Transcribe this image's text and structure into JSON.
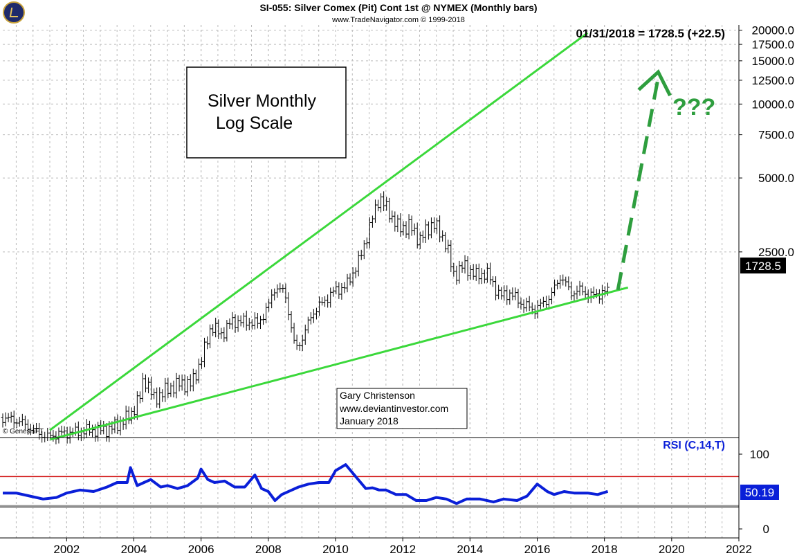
{
  "header": {
    "title": "SI-055:  Silver Comex (Pit) Cont 1st @ NYMEX  (Monthly bars)",
    "subtitle": "www.TradeNavigator.com © 1999-2018",
    "last_price_label": "01/31/2018 = 1728.5 (+22.5)",
    "copyright": "© GenesisFT"
  },
  "annotations": {
    "box_line1": "Silver Monthly",
    "box_line2": "Log Scale",
    "question": "???",
    "author_line1": "Gary Christenson",
    "author_line2": "www.deviantinvestor.com",
    "author_line3": "January 2018",
    "rsi_label": "RSI (C,14,T)"
  },
  "colors": {
    "trendline": "#3bd83b",
    "arrow": "#2e9e3e",
    "rsi_line": "#0a1fd8",
    "rsi_label": "#0a1fd8",
    "overbought": "#d01010",
    "oversold": "#909090",
    "price_bar": "#000000"
  },
  "chart_data": [
    {
      "type": "ohlc",
      "title": "SI-055:  Silver Comex (Pit) Cont 1st @ NYMEX  (Monthly bars)",
      "y_scale": "log",
      "ylim": [
        450,
        21000
      ],
      "y_ticks": [
        "20000.0",
        "17500.0",
        "15000.0",
        "12500.0",
        "10000.0",
        "7500.0",
        "5000.0",
        "2500.0"
      ],
      "y_tick_values": [
        20000,
        17500,
        15000,
        12500,
        10000,
        7500,
        5000,
        2500
      ],
      "xlim": [
        2000.1,
        2022.0
      ],
      "x_ticks": [
        "2002",
        "2004",
        "2006",
        "2008",
        "2010",
        "2012",
        "2014",
        "2016",
        "2018",
        "2020",
        "2022"
      ],
      "last_value_label": "1728.5",
      "close_series": [
        [
          2000.1,
          528
        ],
        [
          2000.6,
          510
        ],
        [
          2001.0,
          472
        ],
        [
          2001.4,
          440
        ],
        [
          2001.8,
          455
        ],
        [
          2002.2,
          460
        ],
        [
          2002.6,
          468
        ],
        [
          2003.0,
          470
        ],
        [
          2003.3,
          475
        ],
        [
          2003.6,
          505
        ],
        [
          2003.9,
          540
        ],
        [
          2004.2,
          650
        ],
        [
          2004.3,
          780
        ],
        [
          2004.6,
          630
        ],
        [
          2005.0,
          690
        ],
        [
          2005.4,
          730
        ],
        [
          2005.7,
          720
        ],
        [
          2006.0,
          900
        ],
        [
          2006.3,
          1250
        ],
        [
          2006.6,
          1150
        ],
        [
          2006.9,
          1300
        ],
        [
          2007.3,
          1300
        ],
        [
          2007.7,
          1280
        ],
        [
          2008.0,
          1500
        ],
        [
          2008.2,
          1800
        ],
        [
          2008.5,
          1700
        ],
        [
          2008.8,
          1000
        ],
        [
          2009.0,
          1100
        ],
        [
          2009.3,
          1400
        ],
        [
          2009.7,
          1600
        ],
        [
          2010.0,
          1750
        ],
        [
          2010.3,
          1800
        ],
        [
          2010.7,
          2300
        ],
        [
          2010.9,
          2800
        ],
        [
          2011.0,
          3100
        ],
        [
          2011.3,
          4200
        ],
        [
          2011.6,
          3600
        ],
        [
          2011.9,
          3100
        ],
        [
          2012.2,
          3200
        ],
        [
          2012.5,
          2800
        ],
        [
          2012.9,
          3300
        ],
        [
          2013.3,
          2700
        ],
        [
          2013.5,
          2000
        ],
        [
          2013.8,
          2200
        ],
        [
          2014.2,
          2000
        ],
        [
          2014.5,
          2050
        ],
        [
          2014.9,
          1650
        ],
        [
          2015.2,
          1700
        ],
        [
          2015.5,
          1550
        ],
        [
          2015.9,
          1450
        ],
        [
          2016.2,
          1550
        ],
        [
          2016.4,
          1650
        ],
        [
          2016.7,
          2000
        ],
        [
          2017.0,
          1700
        ],
        [
          2017.3,
          1750
        ],
        [
          2017.6,
          1650
        ],
        [
          2017.9,
          1700
        ],
        [
          2018.1,
          1728.5
        ]
      ],
      "trendlines": [
        {
          "from": [
            2001.5,
            470
          ],
          "to": [
            2017.5,
            19500
          ]
        },
        {
          "from": [
            2001.5,
            430
          ],
          "to": [
            2018.7,
            1790
          ]
        }
      ],
      "projection_arrow": {
        "from": [
          2018.4,
          1750
        ],
        "to": [
          2019.6,
          13500
        ]
      }
    },
    {
      "type": "line",
      "title": "RSI (C,14,T)",
      "ylim": [
        0,
        100
      ],
      "y_ticks": [
        "100",
        "0"
      ],
      "y_tick_values": [
        100,
        0
      ],
      "overbought": 70,
      "oversold": 30,
      "last_value_label": "50.19",
      "series": [
        {
          "name": "RSI (C,14,T)",
          "x": [
            2000.1,
            2000.5,
            2000.9,
            2001.3,
            2001.7,
            2002.0,
            2002.4,
            2002.8,
            2003.2,
            2003.5,
            2003.8,
            2003.9,
            2004.1,
            2004.3,
            2004.5,
            2004.8,
            2005.0,
            2005.3,
            2005.6,
            2005.9,
            2006.0,
            2006.2,
            2006.4,
            2006.7,
            2007.0,
            2007.3,
            2007.6,
            2007.8,
            2008.0,
            2008.2,
            2008.4,
            2008.7,
            2008.9,
            2009.2,
            2009.5,
            2009.8,
            2010.0,
            2010.3,
            2010.6,
            2010.9,
            2011.1,
            2011.3,
            2011.5,
            2011.8,
            2012.1,
            2012.4,
            2012.7,
            2013.0,
            2013.3,
            2013.6,
            2013.9,
            2014.3,
            2014.7,
            2015.0,
            2015.4,
            2015.7,
            2016.0,
            2016.3,
            2016.5,
            2016.8,
            2017.1,
            2017.5,
            2017.8,
            2018.1
          ],
          "values": [
            48,
            48,
            44,
            40,
            42,
            48,
            52,
            50,
            56,
            62,
            62,
            82,
            58,
            62,
            66,
            56,
            58,
            54,
            58,
            68,
            80,
            66,
            62,
            64,
            56,
            56,
            72,
            54,
            50,
            38,
            46,
            52,
            56,
            60,
            62,
            62,
            78,
            86,
            70,
            54,
            55,
            52,
            52,
            46,
            46,
            38,
            38,
            42,
            40,
            34,
            40,
            40,
            36,
            40,
            38,
            44,
            60,
            50,
            46,
            50,
            48,
            48,
            46,
            50.19
          ]
        }
      ]
    }
  ]
}
